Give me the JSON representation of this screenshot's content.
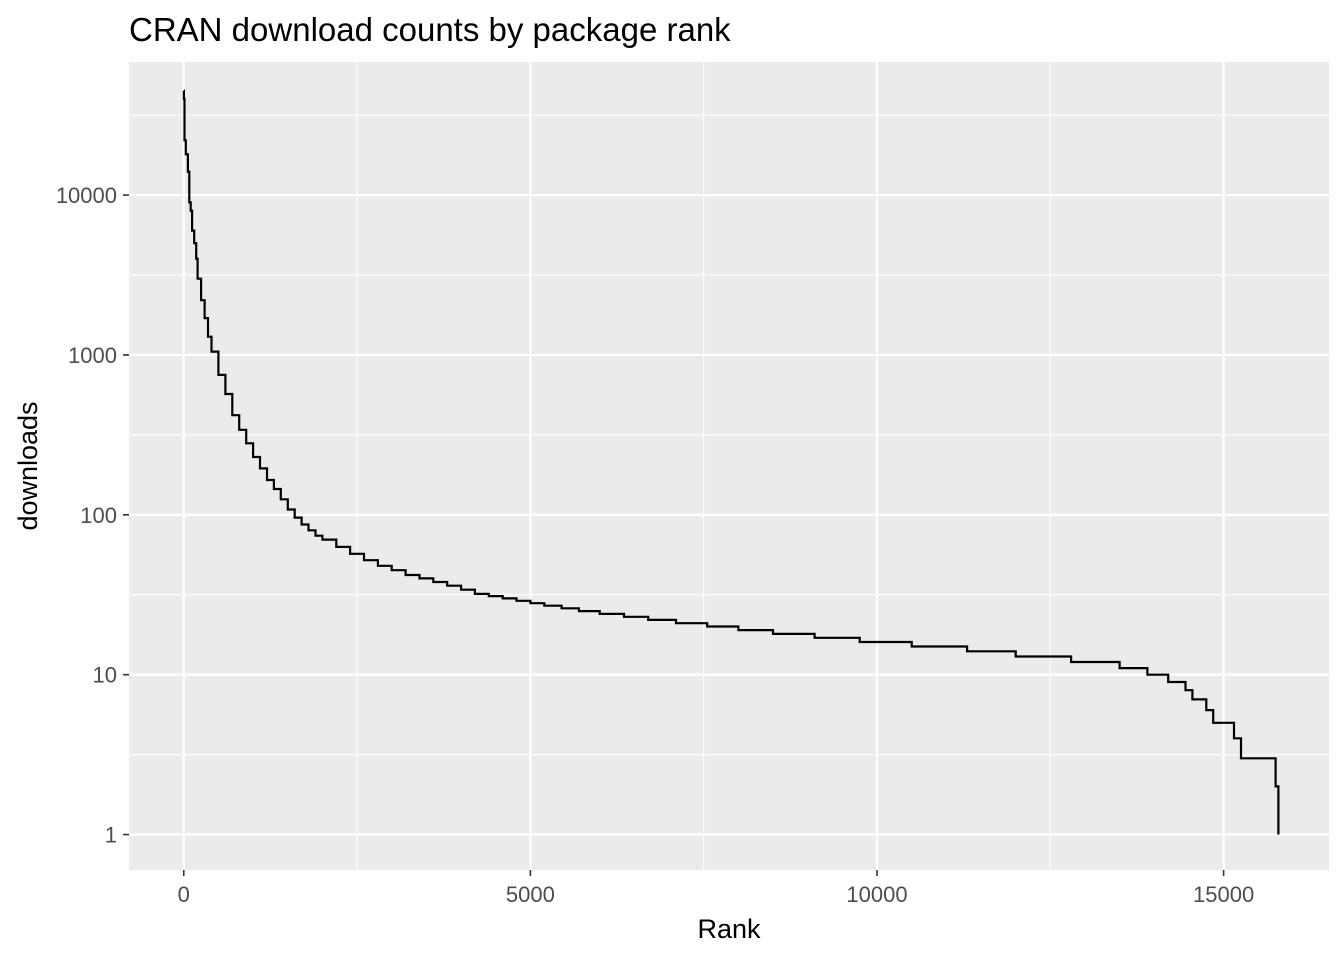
{
  "chart_data": {
    "type": "line",
    "geom": "step",
    "title": "CRAN download counts by package rank",
    "xlabel": "Rank",
    "ylabel": "downloads",
    "xlim": [
      -790,
      16520
    ],
    "ylim": [
      0.6,
      68000
    ],
    "y_scale": "log10",
    "grid": true,
    "legend": "none",
    "x_ticks": [
      0,
      5000,
      10000,
      15000
    ],
    "x_tick_labels": [
      "0",
      "5000",
      "10000",
      "15000"
    ],
    "x_minor_ticks": [
      2500,
      7500,
      12500
    ],
    "y_ticks": [
      1,
      10,
      100,
      1000,
      10000
    ],
    "y_tick_labels": [
      "1",
      "10",
      "100",
      "1000",
      "10000"
    ],
    "y_minor_ticks": [
      3.16,
      31.6,
      316,
      3160,
      31600
    ],
    "colors": {
      "panel_background": "#ebebeb",
      "grid": "#ffffff",
      "line": "#000000",
      "tick_label": "#4d4d4d"
    },
    "series": [
      {
        "x": [
          1,
          2,
          10,
          30,
          60,
          80,
          100,
          120,
          150,
          180,
          200,
          250,
          300,
          350,
          400,
          500,
          600,
          700,
          800,
          900,
          1000,
          1100,
          1200,
          1300,
          1400,
          1500,
          1600,
          1700,
          1800,
          1900,
          2000,
          2200,
          2400,
          2600,
          2800,
          3000,
          3200,
          3400,
          3600,
          3800,
          4000,
          4200,
          4400,
          4600,
          4800,
          5000,
          5200,
          5450,
          5700,
          6000,
          6350,
          6700,
          7100,
          7550,
          8000,
          8500,
          9100,
          9750,
          10500,
          11300,
          12000,
          12800,
          13500,
          13900,
          14200,
          14450,
          14550,
          14750,
          14850,
          15150,
          15250,
          15750,
          15790
        ],
        "y": [
          45000,
          40000,
          22000,
          18000,
          14000,
          9000,
          8000,
          6000,
          5000,
          4000,
          3000,
          2200,
          1700,
          1300,
          1050,
          750,
          570,
          420,
          340,
          280,
          230,
          195,
          165,
          145,
          125,
          108,
          96,
          87,
          80,
          74,
          70,
          63,
          57,
          52,
          48,
          45,
          42,
          40,
          38,
          36,
          34,
          32,
          31,
          30,
          29,
          28,
          27,
          26,
          25,
          24,
          23,
          22,
          21,
          20,
          19,
          18,
          17,
          16,
          15,
          14,
          13,
          12,
          11,
          10,
          9,
          8,
          7,
          6,
          5,
          4,
          3,
          2,
          1
        ]
      }
    ]
  }
}
